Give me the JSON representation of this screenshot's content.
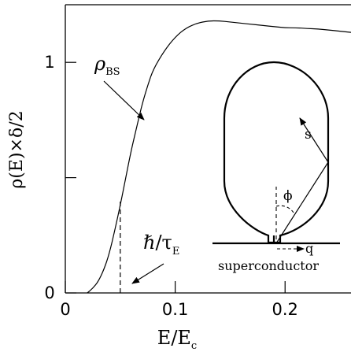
{
  "chart_data": {
    "type": "line",
    "xlabel": "E/E",
    "xlabel_sub": "c",
    "ylabel": "ρ(E)×δ/2",
    "xlim": [
      0,
      0.26
    ],
    "ylim": [
      0,
      1.25
    ],
    "x_ticks": [
      {
        "value": 0,
        "label": "0"
      },
      {
        "value": 0.1,
        "label": "0.1"
      },
      {
        "value": 0.2,
        "label": "0.2"
      }
    ],
    "y_ticks": [
      {
        "value": 0,
        "label": "0"
      },
      {
        "value": 0.5,
        "label": ""
      },
      {
        "value": 1,
        "label": "1"
      }
    ],
    "series": [
      {
        "name": "ρ",
        "name_sub": "BS",
        "x": [
          0.02,
          0.025,
          0.03,
          0.035,
          0.04,
          0.045,
          0.05,
          0.055,
          0.06,
          0.065,
          0.07,
          0.075,
          0.08,
          0.09,
          0.1,
          0.11,
          0.12,
          0.13,
          0.14,
          0.15,
          0.16,
          0.17,
          0.18,
          0.19,
          0.2,
          0.21,
          0.22,
          0.23,
          0.24,
          0.25,
          0.26
        ],
        "y": [
          0.0,
          0.02,
          0.05,
          0.1,
          0.17,
          0.27,
          0.38,
          0.5,
          0.62,
          0.72,
          0.82,
          0.9,
          0.97,
          1.05,
          1.11,
          1.15,
          1.17,
          1.18,
          1.18,
          1.175,
          1.17,
          1.165,
          1.16,
          1.155,
          1.15,
          1.15,
          1.147,
          1.145,
          1.14,
          1.135,
          1.13
        ]
      }
    ],
    "markers": [
      {
        "type": "vertical-dashed",
        "x": 0.05,
        "y_top": 0.38
      }
    ],
    "annotations": [
      {
        "text": "ℏ/τ",
        "sub": "E"
      }
    ]
  },
  "inset": {
    "label_phi": "ϕ",
    "label_s": "s",
    "label_q": "q",
    "caption": "superconductor"
  }
}
